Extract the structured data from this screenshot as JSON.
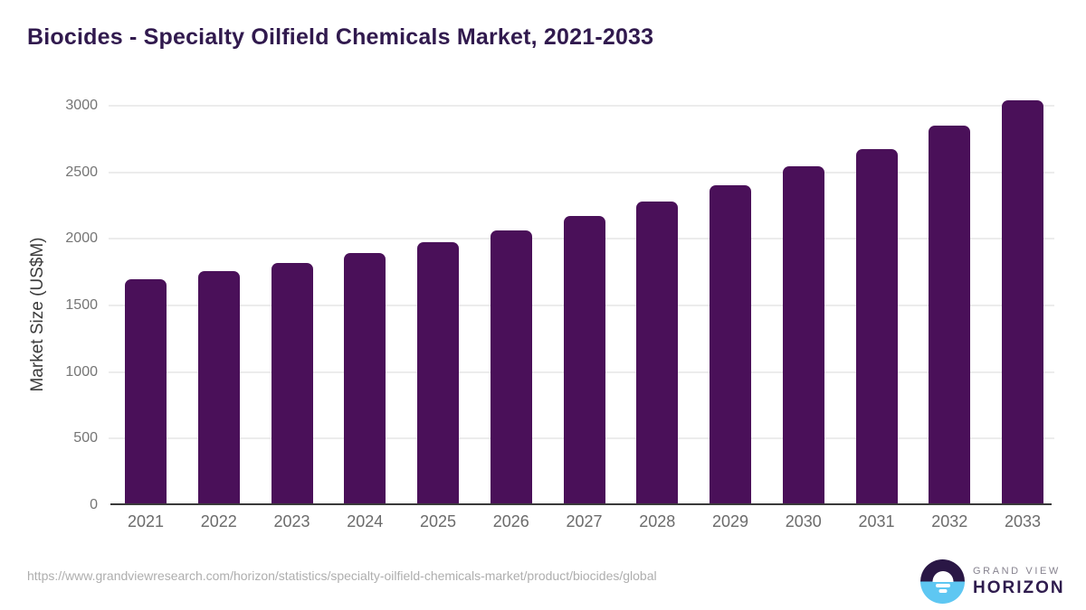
{
  "title": {
    "text": "Biocides - Specialty Oilfield Chemicals Market, 2021-2033"
  },
  "chart_data": {
    "type": "bar",
    "title": "Biocides - Specialty Oilfield Chemicals Market, 2021-2033",
    "categories": [
      "2021",
      "2022",
      "2023",
      "2024",
      "2025",
      "2026",
      "2027",
      "2028",
      "2029",
      "2030",
      "2031",
      "2032",
      "2033"
    ],
    "values": [
      1695,
      1757,
      1820,
      1896,
      1978,
      2062,
      2170,
      2280,
      2400,
      2545,
      2676,
      2848,
      3040
    ],
    "xlabel": "",
    "ylabel": "Market Size (US$M)",
    "ylim": [
      0,
      3000
    ],
    "yticks": [
      0,
      500,
      1000,
      1500,
      2000,
      2500,
      3000
    ],
    "grid": true,
    "legend": false,
    "bar_color": "#4a1059"
  },
  "footer": {
    "source_url": "https://www.grandviewresearch.com/horizon/statistics/specialty-oilfield-chemicals-market/product/biocides/global",
    "logo": {
      "line1": "GRAND VIEW",
      "line2": "HORIZON"
    }
  },
  "colors": {
    "bar": "#4a1059",
    "title": "#311a4e",
    "gridline": "#ececec",
    "axis_line": "#3a3a3a",
    "y_tick_label": "#757575",
    "x_tick_label": "#6b6b6b",
    "y_axis_title": "#3b3b3b",
    "source_url": "#aeaeae",
    "logo_gray": "#87838f",
    "logo_purple": "#2f1c4e",
    "logo_circle_top": "#2a1745",
    "logo_circle_bottom": "#5ec7f2"
  }
}
